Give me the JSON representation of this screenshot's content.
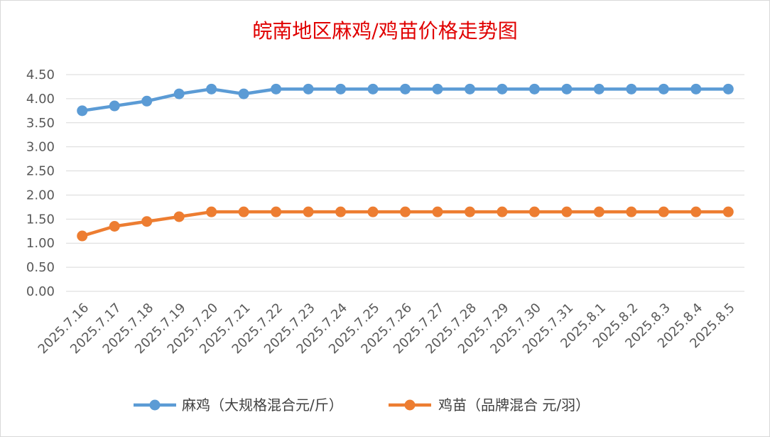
{
  "chart_data": {
    "type": "line",
    "title": "皖南地区麻鸡/鸡苗价格走势图",
    "xlabel": "",
    "ylabel": "",
    "ylim": [
      0,
      4.5
    ],
    "yticks": [
      "0.00",
      "0.50",
      "1.00",
      "1.50",
      "2.00",
      "2.50",
      "3.00",
      "3.50",
      "4.00",
      "4.50"
    ],
    "grid": "horizontal",
    "legend_position": "bottom",
    "categories": [
      "2025.7.16",
      "2025.7.17",
      "2025.7.18",
      "2025.7.19",
      "2025.7.20",
      "2025.7.21",
      "2025.7.22",
      "2025.7.23",
      "2025.7.24",
      "2025.7.25",
      "2025.7.26",
      "2025.7.27",
      "2025.7.28",
      "2025.7.29",
      "2025.7.30",
      "2025.7.31",
      "2025.8.1",
      "2025.8.2",
      "2025.8.3",
      "2025.8.4",
      "2025.8.5"
    ],
    "series": [
      {
        "name": "麻鸡（大规格混合元/斤）",
        "color": "#5b9bd5",
        "values": [
          3.75,
          3.85,
          3.95,
          4.1,
          4.2,
          4.1,
          4.2,
          4.2,
          4.2,
          4.2,
          4.2,
          4.2,
          4.2,
          4.2,
          4.2,
          4.2,
          4.2,
          4.2,
          4.2,
          4.2,
          4.2
        ]
      },
      {
        "name": "鸡苗（品牌混合 元/羽）",
        "color": "#ed7d31",
        "values": [
          1.15,
          1.35,
          1.45,
          1.55,
          1.65,
          1.65,
          1.65,
          1.65,
          1.65,
          1.65,
          1.65,
          1.65,
          1.65,
          1.65,
          1.65,
          1.65,
          1.65,
          1.65,
          1.65,
          1.65,
          1.65
        ]
      }
    ]
  }
}
